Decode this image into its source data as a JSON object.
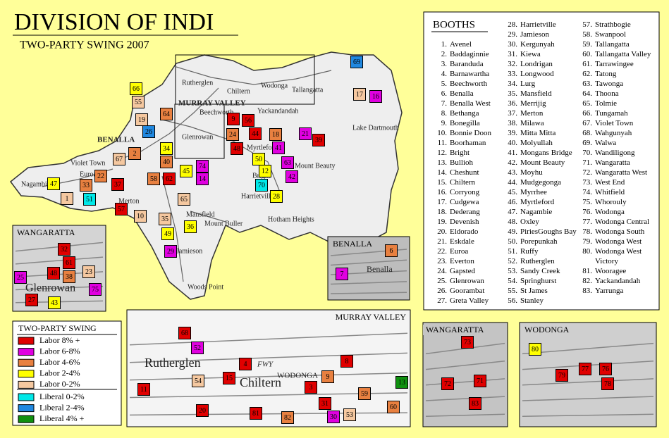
{
  "title": "DIVISION OF INDI",
  "subtitle": "TWO-PARTY SWING 2007",
  "booths": {
    "title": "BOOTHS",
    "items": [
      {
        "number": "1.",
        "name": "Avenel"
      },
      {
        "number": "2.",
        "name": "Baddaginnie"
      },
      {
        "number": "3.",
        "name": "Baranduda"
      },
      {
        "number": "4.",
        "name": "Barnawartha"
      },
      {
        "number": "5.",
        "name": "Beechworth"
      },
      {
        "number": "6.",
        "name": "Benalla"
      },
      {
        "number": "7.",
        "name": "Benalla West"
      },
      {
        "number": "8.",
        "name": "Bethanga"
      },
      {
        "number": "9.",
        "name": "Bonegilla"
      },
      {
        "number": "10.",
        "name": "Bonnie Doon"
      },
      {
        "number": "11.",
        "name": "Boorhaman"
      },
      {
        "number": "12.",
        "name": "Bright"
      },
      {
        "number": "13.",
        "name": "Bullioh"
      },
      {
        "number": "14.",
        "name": "Cheshunt"
      },
      {
        "number": "15.",
        "name": "Chiltern"
      },
      {
        "number": "16.",
        "name": "Corryong"
      },
      {
        "number": "17.",
        "name": "Cudgewa"
      },
      {
        "number": "18.",
        "name": "Dederang"
      },
      {
        "number": "19.",
        "name": "Devenish"
      },
      {
        "number": "20.",
        "name": "Eldorado"
      },
      {
        "number": "21.",
        "name": "Eskdale"
      },
      {
        "number": "22.",
        "name": "Euroa"
      },
      {
        "number": "23.",
        "name": "Everton"
      },
      {
        "number": "24.",
        "name": "Gapsted"
      },
      {
        "number": "25.",
        "name": "Glenrowan"
      },
      {
        "number": "26.",
        "name": "Goorambat"
      },
      {
        "number": "27.",
        "name": "Greta Valley"
      },
      {
        "number": "28.",
        "name": "Harrietville"
      },
      {
        "number": "29.",
        "name": "Jamieson"
      },
      {
        "number": "30.",
        "name": "Kergunyah"
      },
      {
        "number": "31.",
        "name": "Kiewa"
      },
      {
        "number": "32.",
        "name": "Londrigan"
      },
      {
        "number": "33.",
        "name": "Longwood"
      },
      {
        "number": "34.",
        "name": "Lurg"
      },
      {
        "number": "35.",
        "name": "Mansfield"
      },
      {
        "number": "36.",
        "name": "Merrijig"
      },
      {
        "number": "37.",
        "name": "Merton"
      },
      {
        "number": "38.",
        "name": "Milawa"
      },
      {
        "number": "39.",
        "name": "Mitta Mitta"
      },
      {
        "number": "40.",
        "name": "Molyullah"
      },
      {
        "number": "41.",
        "name": "Mongans Bridge"
      },
      {
        "number": "42.",
        "name": "Mount Beauty"
      },
      {
        "number": "43.",
        "name": "Moyhu"
      },
      {
        "number": "44.",
        "name": "Mudgegonga"
      },
      {
        "number": "45.",
        "name": "Myrrhee"
      },
      {
        "number": "46.",
        "name": "Myrtleford"
      },
      {
        "number": "47.",
        "name": "Nagambie"
      },
      {
        "number": "48.",
        "name": "Oxley"
      },
      {
        "number": "49.",
        "name": "PiriesGoughs Bay"
      },
      {
        "number": "50.",
        "name": "Porepunkah"
      },
      {
        "number": "51.",
        "name": "Ruffy"
      },
      {
        "number": "52.",
        "name": "Rutherglen"
      },
      {
        "number": "53.",
        "name": "Sandy Creek"
      },
      {
        "number": "54.",
        "name": "Springhurst"
      },
      {
        "number": "55.",
        "name": "St James"
      },
      {
        "number": "56.",
        "name": "Stanley"
      },
      {
        "number": "57.",
        "name": "Strathbogie"
      },
      {
        "number": "58.",
        "name": "Swanpool"
      },
      {
        "number": "59.",
        "name": "Tallangatta"
      },
      {
        "number": "60.",
        "name": "Tallangatta Valley"
      },
      {
        "number": "61.",
        "name": "Tarrawingee"
      },
      {
        "number": "62.",
        "name": "Tatong"
      },
      {
        "number": "63.",
        "name": "Tawonga"
      },
      {
        "number": "64.",
        "name": "Thoona"
      },
      {
        "number": "65.",
        "name": "Tolmie"
      },
      {
        "number": "66.",
        "name": "Tungamah"
      },
      {
        "number": "67.",
        "name": "Violet Town"
      },
      {
        "number": "68.",
        "name": "Wahgunyah"
      },
      {
        "number": "69.",
        "name": "Walwa"
      },
      {
        "number": "70.",
        "name": "Wandiligong"
      },
      {
        "number": "71.",
        "name": "Wangaratta"
      },
      {
        "number": "72.",
        "name": "Wangaratta West"
      },
      {
        "number": "73.",
        "name": "West End"
      },
      {
        "number": "74.",
        "name": "Whitfield"
      },
      {
        "number": "75.",
        "name": "Whorouly"
      },
      {
        "number": "76.",
        "name": "Wodonga"
      },
      {
        "number": "77.",
        "name": "Wodonga Central"
      },
      {
        "number": "78.",
        "name": "Wodonga South"
      },
      {
        "number": "79.",
        "name": "Wodonga West"
      },
      {
        "number": "80.",
        "name": "Wodonga West Victory"
      },
      {
        "number": "81.",
        "name": "Wooragee"
      },
      {
        "number": "82.",
        "name": "Yackandandah"
      },
      {
        "number": "83.",
        "name": "Yarrunga"
      }
    ]
  },
  "legend": {
    "title": "TWO-PARTY SWING",
    "items": [
      {
        "label": "Labor 8% +",
        "color": "#e00000"
      },
      {
        "label": "Labor 6-8%",
        "color": "#e000e0"
      },
      {
        "label": "Labor 4-6%",
        "color": "#e88040"
      },
      {
        "label": "Labor 2-4%",
        "color": "#ffff00"
      },
      {
        "label": "Labor 0-2%",
        "color": "#f5c8a0"
      },
      {
        "label": "Liberal 0-2%",
        "color": "#00e8e8"
      },
      {
        "label": "Liberal 2-4%",
        "color": "#2088e0"
      },
      {
        "label": "Liberal 4% +",
        "color": "#109010"
      }
    ]
  },
  "main_map": {
    "places": [
      "Rutherglen",
      "Chiltern",
      "Wodonga",
      "Tallangatta",
      "Yackandandah",
      "Beechworth",
      "Glenrowan",
      "Violet Town",
      "Euroa",
      "Nagambie",
      "Merton",
      "Mansfield",
      "Mount Buller",
      "Jamieson",
      "Woods Point",
      "Myrtleford",
      "Bright",
      "Harrietville",
      "Hotham Heights",
      "Lake Dartmouth",
      "MURRAY VALLEY",
      "BENALLA",
      "Mount Beauty"
    ],
    "markers": [
      {
        "label": "66",
        "swing": 3
      },
      {
        "label": "55",
        "swing": 4
      },
      {
        "label": "19",
        "swing": 4
      },
      {
        "label": "64",
        "swing": 2
      },
      {
        "label": "26",
        "swing": 6
      },
      {
        "label": "69",
        "swing": 6
      },
      {
        "label": "17",
        "swing": 4
      },
      {
        "label": "16",
        "swing": 1
      },
      {
        "label": "9",
        "swing": 0
      },
      {
        "label": "56",
        "swing": 0
      },
      {
        "label": "24",
        "swing": 2
      },
      {
        "label": "44",
        "swing": 0
      },
      {
        "label": "18",
        "swing": 2
      },
      {
        "label": "21",
        "swing": 1
      },
      {
        "label": "39",
        "swing": 0
      },
      {
        "label": "48",
        "swing": 0
      },
      {
        "label": "41",
        "swing": 1
      },
      {
        "label": "34",
        "swing": 3
      },
      {
        "label": "2",
        "swing": 2
      },
      {
        "label": "67",
        "swing": 4
      },
      {
        "label": "40",
        "swing": 2
      },
      {
        "label": "74",
        "swing": 1
      },
      {
        "label": "45",
        "swing": 3
      },
      {
        "label": "50",
        "swing": 3
      },
      {
        "label": "63",
        "swing": 1
      },
      {
        "label": "12",
        "swing": 3
      },
      {
        "label": "42",
        "swing": 1
      },
      {
        "label": "14",
        "swing": 1
      },
      {
        "label": "58",
        "swing": 2
      },
      {
        "label": "62",
        "swing": 0
      },
      {
        "label": "22",
        "swing": 2
      },
      {
        "label": "33",
        "swing": 2
      },
      {
        "label": "37",
        "swing": 0
      },
      {
        "label": "47",
        "swing": 3
      },
      {
        "label": "70",
        "swing": 5
      },
      {
        "label": "28",
        "swing": 3
      },
      {
        "label": "65",
        "swing": 4
      },
      {
        "label": "1",
        "swing": 4
      },
      {
        "label": "51",
        "swing": 5
      },
      {
        "label": "57",
        "swing": 0
      },
      {
        "label": "10",
        "swing": 4
      },
      {
        "label": "35",
        "swing": 4
      },
      {
        "label": "36",
        "swing": 3
      },
      {
        "label": "49",
        "swing": 3
      },
      {
        "label": "29",
        "swing": 1
      }
    ]
  },
  "insets": [
    {
      "title": "WANGARATTA",
      "places": [
        "Glenrowan"
      ],
      "markers": [
        {
          "label": "32",
          "swing": 0
        },
        {
          "label": "61",
          "swing": 0
        },
        {
          "label": "25",
          "swing": 1
        },
        {
          "label": "48",
          "swing": 0
        },
        {
          "label": "38",
          "swing": 2
        },
        {
          "label": "23",
          "swing": 4
        },
        {
          "label": "75",
          "swing": 1
        },
        {
          "label": "27",
          "swing": 0
        },
        {
          "label": "43",
          "swing": 3
        }
      ]
    },
    {
      "title": "BENALLA",
      "places": [
        "Benalla"
      ],
      "markers": [
        {
          "label": "6",
          "swing": 2
        },
        {
          "label": "7",
          "swing": 1
        }
      ]
    },
    {
      "title": "MURRAY VALLEY",
      "places": [
        "Rutherglen",
        "Chiltern",
        "FWY",
        "WODONGA"
      ],
      "markers": [
        {
          "label": "68",
          "swing": 0
        },
        {
          "label": "52",
          "swing": 1
        },
        {
          "label": "4",
          "swing": 0
        },
        {
          "label": "8",
          "swing": 0
        },
        {
          "label": "11",
          "swing": 0
        },
        {
          "label": "15",
          "swing": 0
        },
        {
          "label": "54",
          "swing": 4
        },
        {
          "label": "9",
          "swing": 2
        },
        {
          "label": "13",
          "swing": 7
        },
        {
          "label": "3",
          "swing": 0
        },
        {
          "label": "59",
          "swing": 2
        },
        {
          "label": "31",
          "swing": 0
        },
        {
          "label": "20",
          "swing": 0
        },
        {
          "label": "81",
          "swing": 0
        },
        {
          "label": "82",
          "swing": 2
        },
        {
          "label": "30",
          "swing": 1
        },
        {
          "label": "53",
          "swing": 4
        },
        {
          "label": "60",
          "swing": 2
        }
      ]
    },
    {
      "title": "WANGARATTA",
      "places": [],
      "markers": [
        {
          "label": "73",
          "swing": 0
        },
        {
          "label": "72",
          "swing": 0
        },
        {
          "label": "71",
          "swing": 0
        },
        {
          "label": "83",
          "swing": 0
        }
      ]
    },
    {
      "title": "WODONGA",
      "places": [],
      "markers": [
        {
          "label": "80",
          "swing": 3
        },
        {
          "label": "79",
          "swing": 0
        },
        {
          "label": "77",
          "swing": 0
        },
        {
          "label": "76",
          "swing": 0
        },
        {
          "label": "78",
          "swing": 0
        }
      ]
    }
  ]
}
